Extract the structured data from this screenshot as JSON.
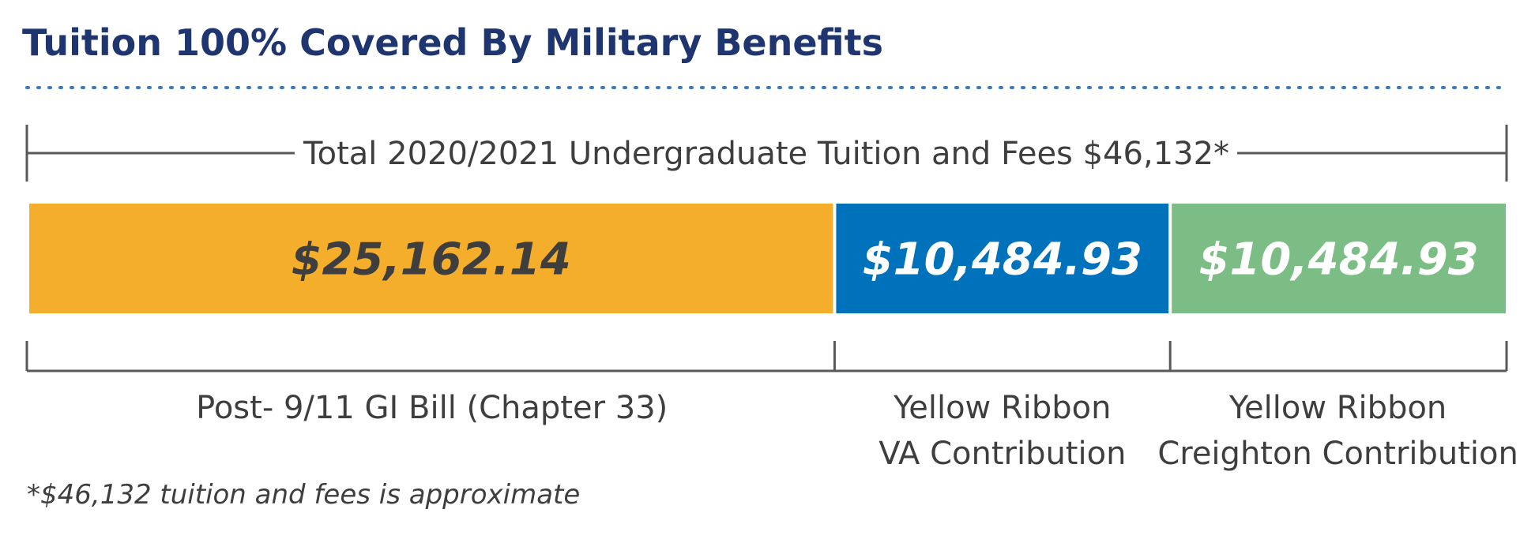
{
  "title": "Tuition 100% Covered By Military Benefits",
  "footnote": "*$46,132 tuition and fees is approximate",
  "colors": {
    "title": "#1f3570",
    "divider": "#3a7cc4",
    "text": "#3e3e3e",
    "bracket": "#595959"
  },
  "chart_data": {
    "type": "bar",
    "orientation": "horizontal-stacked",
    "total": 46132,
    "total_label": "Total 2020/2021 Undergraduate Tuition and Fees $46,132*",
    "segments": [
      {
        "value": 25162.14,
        "value_label": "$25,162.14",
        "label_lines": [
          "Post- 9/11 GI Bill (Chapter 33)"
        ],
        "color": "#f5ae2c",
        "text_color": "#3e3e3e"
      },
      {
        "value": 10484.93,
        "value_label": "$10,484.93",
        "label_lines": [
          "Yellow Ribbon",
          "VA Contribution"
        ],
        "color": "#0072bc",
        "text_color": "#ffffff"
      },
      {
        "value": 10484.93,
        "value_label": "$10,484.93",
        "label_lines": [
          "Yellow Ribbon",
          "Creighton Contribution"
        ],
        "color": "#7bbd84",
        "text_color": "#ffffff"
      }
    ]
  }
}
